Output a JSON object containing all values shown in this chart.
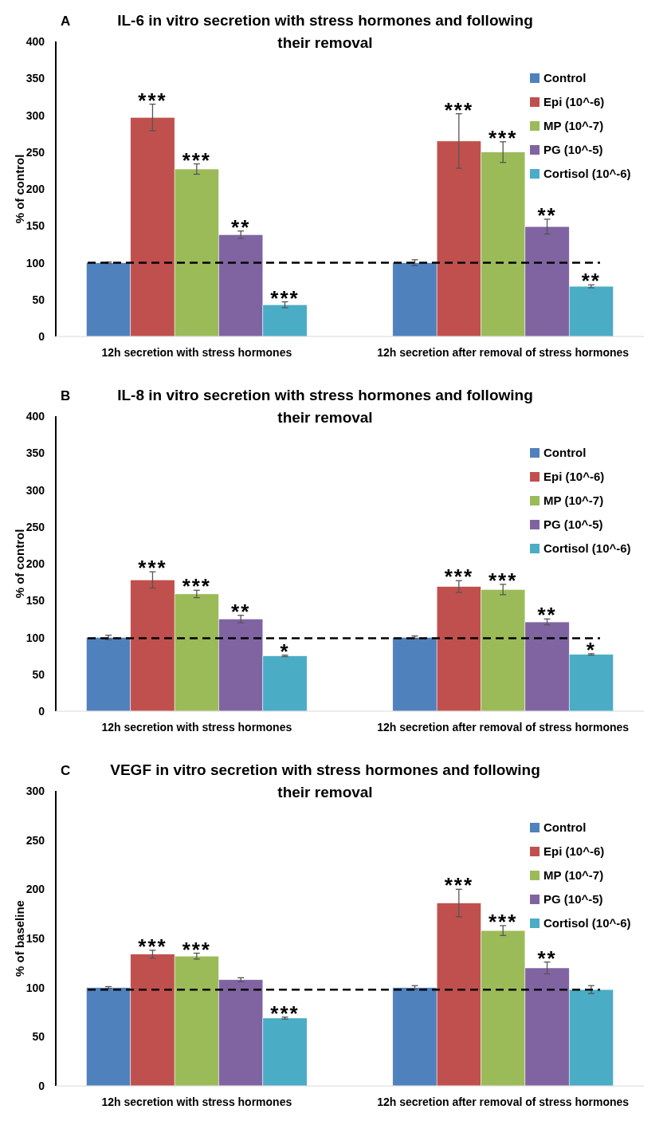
{
  "chart_data": [
    {
      "type": "bar",
      "title": "IL-6 in vitro secretion with stress hormones and following their removal",
      "ylabel": "% of control",
      "categories": [
        "12h secretion with stress hormones",
        "12h secretion after removal of stress hormones"
      ],
      "series": [
        {
          "name": "Control",
          "color": "#4f81bd",
          "values": [
            100,
            100
          ],
          "errors": [
            1,
            4
          ],
          "value_labels": [
            null,
            null
          ]
        },
        {
          "name": "Epi (10^-6)",
          "color": "#c0504d",
          "values": [
            297,
            265
          ],
          "errors": [
            18,
            37
          ],
          "value_labels": [
            "***",
            "***"
          ]
        },
        {
          "name": "MP (10^-7)",
          "color": "#9bbb59",
          "values": [
            227,
            250
          ],
          "errors": [
            7,
            14
          ],
          "value_labels": [
            "***",
            "***"
          ]
        },
        {
          "name": "PG (10^-5)",
          "color": "#8064a2",
          "values": [
            138,
            149
          ],
          "errors": [
            5,
            10
          ],
          "value_labels": [
            "**",
            "**"
          ]
        },
        {
          "name": "Cortisol (10^-6)",
          "color": "#4bacc6",
          "values": [
            43,
            68
          ],
          "errors": [
            4,
            2
          ],
          "value_labels": [
            "***",
            "**"
          ]
        }
      ],
      "ylim": [
        0,
        400
      ],
      "yticks": [
        0,
        50,
        100,
        150,
        200,
        250,
        300,
        350,
        400
      ],
      "legend": "top right",
      "ref_lines": [
        {
          "axis": "y",
          "value": 100,
          "line_style": "dashed",
          "color": "#000000"
        }
      ],
      "annotations": [
        "A"
      ]
    },
    {
      "type": "bar",
      "title": "IL-8 in vitro secretion with stress hormones and following their removal",
      "ylabel": "% of control",
      "categories": [
        "12h secretion with stress hormones",
        "12h secretion after removal of stress hormones"
      ],
      "series": [
        {
          "name": "Control",
          "color": "#4f81bd",
          "values": [
            100,
            100
          ],
          "errors": [
            3,
            2
          ],
          "value_labels": [
            null,
            null
          ]
        },
        {
          "name": "Epi (10^-6)",
          "color": "#c0504d",
          "values": [
            178,
            169
          ],
          "errors": [
            11,
            8
          ],
          "value_labels": [
            "***",
            "***"
          ]
        },
        {
          "name": "MP (10^-7)",
          "color": "#9bbb59",
          "values": [
            159,
            165
          ],
          "errors": [
            5,
            7
          ],
          "value_labels": [
            "***",
            "***"
          ]
        },
        {
          "name": "PG (10^-5)",
          "color": "#8064a2",
          "values": [
            125,
            121
          ],
          "errors": [
            5,
            4
          ],
          "value_labels": [
            "**",
            "**"
          ]
        },
        {
          "name": "Cortisol (10^-6)",
          "color": "#4bacc6",
          "values": [
            75,
            77
          ],
          "errors": [
            1,
            1
          ],
          "value_labels": [
            "*",
            "*"
          ]
        }
      ],
      "ylim": [
        0,
        400
      ],
      "yticks": [
        0,
        50,
        100,
        150,
        200,
        250,
        300,
        350,
        400
      ],
      "legend": "top right",
      "ref_lines": [
        {
          "axis": "y",
          "value": 99,
          "line_style": "dashed",
          "color": "#000000"
        }
      ],
      "annotations": [
        "B"
      ]
    },
    {
      "type": "bar",
      "title": "VEGF in vitro secretion with stress hormones and following their removal",
      "ylabel": "% of baseline",
      "categories": [
        "12h secretion with stress hormones",
        "12h secretion after removal of stress hormones"
      ],
      "series": [
        {
          "name": "Control",
          "color": "#4f81bd",
          "values": [
            100,
            100
          ],
          "errors": [
            1,
            2
          ],
          "value_labels": [
            null,
            null
          ]
        },
        {
          "name": "Epi (10^-6)",
          "color": "#c0504d",
          "values": [
            134,
            186
          ],
          "errors": [
            4,
            14
          ],
          "value_labels": [
            "***",
            "***"
          ]
        },
        {
          "name": "MP (10^-7)",
          "color": "#9bbb59",
          "values": [
            132,
            158
          ],
          "errors": [
            3,
            5
          ],
          "value_labels": [
            "***",
            "***"
          ]
        },
        {
          "name": "PG (10^-5)",
          "color": "#8064a2",
          "values": [
            108,
            120
          ],
          "errors": [
            2,
            6
          ],
          "value_labels": [
            null,
            "**"
          ]
        },
        {
          "name": "Cortisol (10^-6)",
          "color": "#4bacc6",
          "values": [
            69,
            98
          ],
          "errors": [
            1,
            4
          ],
          "value_labels": [
            "***",
            null
          ]
        }
      ],
      "ylim": [
        0,
        300
      ],
      "yticks": [
        0,
        50,
        100,
        150,
        200,
        250,
        300
      ],
      "legend": "top right",
      "ref_lines": [
        {
          "axis": "y",
          "value": 98,
          "line_style": "dashed",
          "color": "#000000"
        }
      ],
      "annotations": [
        "C"
      ]
    }
  ]
}
